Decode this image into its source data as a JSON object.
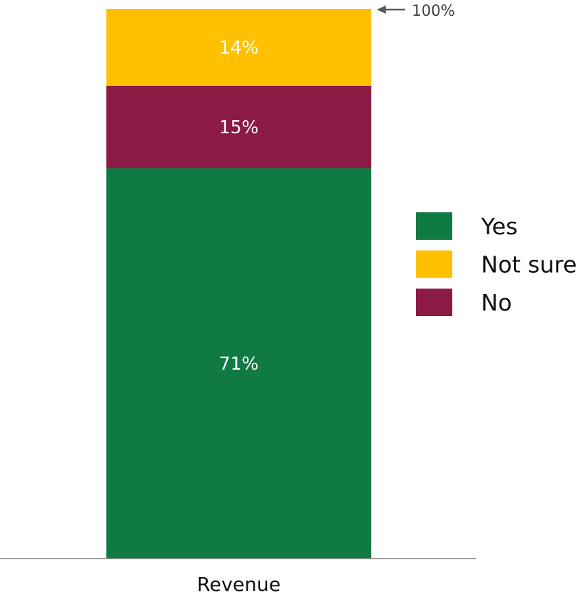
{
  "chart_data": {
    "type": "bar",
    "stacked": true,
    "categories": [
      "Revenue"
    ],
    "series": [
      {
        "name": "Yes",
        "values": [
          71
        ],
        "color": "#107a43",
        "label": "71%"
      },
      {
        "name": "No",
        "values": [
          15
        ],
        "color": "#8b1a45",
        "label": "15%"
      },
      {
        "name": "Not sure",
        "values": [
          14
        ],
        "color": "#ffc000",
        "label": "14%"
      }
    ],
    "legend_order": [
      "Yes",
      "Not sure",
      "No"
    ],
    "ylim": [
      0,
      100
    ],
    "total_annotation": "100%",
    "title": "",
    "xlabel": "",
    "ylabel": "",
    "grid": false,
    "legend_position": "right"
  }
}
